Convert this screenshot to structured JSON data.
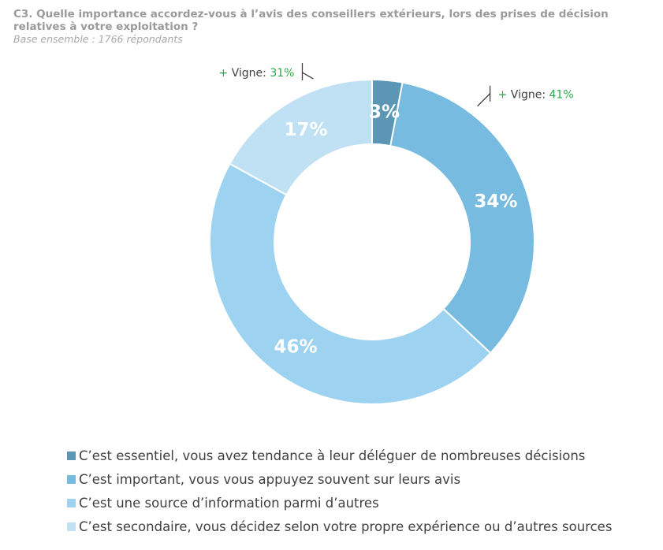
{
  "header": {
    "title": "C3. Quelle importance accordez-vous à l’avis des conseillers extérieurs, lors des prises de décision relatives à votre exploitation ?",
    "subtitle": "Base ensemble : 1766 répondants"
  },
  "chart_data": {
    "type": "pie",
    "variant": "donut",
    "title": "C3. Quelle importance accordez-vous à l’avis des conseillers extérieurs, lors des prises de décision relatives à votre exploitation ?",
    "subtitle": "Base ensemble : 1766 répondants",
    "unit": "%",
    "legend_position": "bottom",
    "slices": [
      {
        "label": "C’est essentiel, vous avez tendance à leur déléguer de nombreuses décisions",
        "value": 3,
        "value_label": "3%",
        "color": "#5b97b5"
      },
      {
        "label": "C’est important, vous vous appuyez souvent sur leurs avis",
        "value": 34,
        "value_label": "34%",
        "color": "#77bbe0"
      },
      {
        "label": "C’est une source d’information parmi d’autres",
        "value": 46,
        "value_label": "46%",
        "color": "#9dd3f0"
      },
      {
        "label": "C’est secondaire, vous décidez selon votre propre expérience ou d’autres sources",
        "value": 17,
        "value_label": "17%",
        "color": "#c0e1f3"
      }
    ],
    "annotations": [
      {
        "prefix": "+ ",
        "text": "Vigne: ",
        "value": "41%",
        "side": "right",
        "applies_to_slices": [
          0,
          1
        ]
      },
      {
        "prefix": "+ ",
        "text": "Vigne: ",
        "value": "31%",
        "side": "left",
        "applies_to_slices": [
          3
        ]
      }
    ],
    "colors": {
      "annotation_accent": "#2ea84a",
      "annotation_text": "#404040",
      "bracket": "#404040"
    }
  }
}
